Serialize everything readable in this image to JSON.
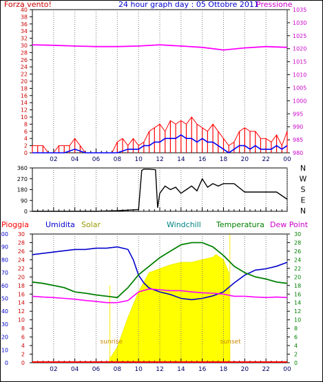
{
  "header": {
    "left_label": "Forza vento!",
    "title": "24 hour graph day : 05 Ottobre 2011",
    "right_label": "Pressione"
  },
  "colors": {
    "wind": "#ff0000",
    "gust_avg": "#0000ff",
    "pressure": "#ff00ff",
    "direction": "#000000",
    "rain": "#ff0000",
    "humidity": "#0000cc",
    "solar": "#ffff00",
    "windchill": "#0000aa",
    "temperature": "#008000",
    "dewpoint": "#ff00ff",
    "axis_left": "#cc0000",
    "axis_right_temp": "#008000"
  },
  "chart_data": [
    {
      "type": "line",
      "name": "wind-pressure",
      "x_ticks": [
        "02",
        "04",
        "06",
        "08",
        "10",
        "12",
        "14",
        "16",
        "18",
        "20",
        "22",
        "00"
      ],
      "y_left_ticks": [
        "0",
        "2",
        "4",
        "6",
        "8",
        "10",
        "12",
        "14",
        "16",
        "18",
        "20",
        "22",
        "24",
        "26",
        "28",
        "30",
        "32",
        "34",
        "36",
        "38",
        "40"
      ],
      "ylim_left": [
        0,
        40
      ],
      "y_right_ticks": [
        "980",
        "985",
        "990",
        "995",
        "1000",
        "1005",
        "1010",
        "1015",
        "1020",
        "1025",
        "1030",
        "1035"
      ],
      "ylim_right": [
        980,
        1035
      ],
      "series": [
        {
          "key": "pressure",
          "x": [
            0,
            2,
            4,
            6,
            8,
            10,
            12,
            14,
            16,
            18,
            20,
            22,
            24
          ],
          "values": [
            1021.5,
            1021.3,
            1021.0,
            1020.8,
            1020.8,
            1021.0,
            1021.5,
            1021.0,
            1020.5,
            1019.5,
            1020.3,
            1020.8,
            1020.5
          ]
        },
        {
          "key": "wind",
          "x": [
            0,
            0.5,
            1,
            1.5,
            2,
            2.5,
            3,
            3.5,
            4,
            4.5,
            5,
            5.5,
            6,
            6.5,
            7,
            7.5,
            8,
            8.5,
            9,
            9.5,
            10,
            10.5,
            11,
            11.5,
            12,
            12.5,
            13,
            13.5,
            14,
            14.5,
            15,
            15.5,
            16,
            16.5,
            17,
            17.5,
            18,
            18.5,
            19,
            19.5,
            20,
            20.5,
            21,
            21.5,
            22,
            22.5,
            23,
            23.5,
            24
          ],
          "values": [
            2,
            2,
            2,
            0,
            0,
            2,
            2,
            2,
            4,
            2,
            0,
            0,
            0,
            0,
            0,
            0,
            3,
            4,
            2,
            4,
            2,
            3,
            6,
            7,
            8,
            6,
            9,
            8,
            9,
            8,
            10,
            8,
            7,
            6,
            8,
            6,
            4,
            2,
            3,
            6,
            7,
            6,
            6,
            4,
            4,
            3,
            5,
            2,
            6
          ]
        },
        {
          "key": "gust_avg",
          "x": [
            0,
            1,
            2,
            3,
            4,
            5,
            6,
            7,
            8,
            9,
            10,
            10.5,
            11,
            11.5,
            12,
            12.5,
            13,
            13.5,
            14,
            14.5,
            15,
            15.5,
            16,
            16.5,
            17,
            17.5,
            18,
            18.5,
            19,
            19.5,
            20,
            20.5,
            21,
            21.5,
            22,
            22.5,
            23,
            23.5,
            24
          ],
          "values": [
            0,
            0,
            0,
            0,
            1,
            0,
            0,
            0,
            0,
            1,
            1,
            2,
            2,
            3,
            3,
            4,
            4,
            4,
            5,
            4,
            4,
            3,
            4,
            3,
            3,
            2,
            1,
            0,
            1,
            2,
            2,
            1,
            2,
            1,
            1,
            1,
            2,
            1,
            2
          ]
        }
      ]
    },
    {
      "type": "line",
      "name": "wind-direction",
      "x_ticks": [
        "02",
        "04",
        "06",
        "08",
        "10",
        "12",
        "14",
        "16",
        "18",
        "20",
        "22",
        "00"
      ],
      "y_ticks": [
        "0",
        "90",
        "180",
        "270",
        "360"
      ],
      "y_right_labels": [
        "N",
        "W",
        "S",
        "E",
        "N"
      ],
      "ylim": [
        0,
        360
      ],
      "series": [
        {
          "key": "direction",
          "x": [
            0,
            2,
            4,
            6,
            8,
            9,
            10,
            10.3,
            10.5,
            11,
            11.6,
            11.8,
            12,
            12.5,
            13,
            13.5,
            14,
            14.5,
            15,
            15.5,
            16,
            16.5,
            17,
            17.5,
            18,
            19,
            20,
            21,
            22,
            23,
            24
          ],
          "values": [
            0,
            0,
            0,
            0,
            5,
            10,
            15,
            340,
            350,
            350,
            345,
            30,
            150,
            210,
            180,
            200,
            150,
            180,
            210,
            170,
            270,
            200,
            230,
            210,
            230,
            230,
            160,
            160,
            160,
            160,
            100
          ]
        }
      ]
    },
    {
      "type": "line",
      "name": "temp-humidity-solar",
      "x_ticks": [
        "02",
        "04",
        "06",
        "08",
        "10",
        "12",
        "14",
        "16",
        "18",
        "20",
        "22",
        "00"
      ],
      "y_left_ticks": [
        "0",
        "10",
        "20",
        "30",
        "40",
        "50",
        "60",
        "70",
        "80",
        "90",
        "100"
      ],
      "ylim_left": [
        0,
        100
      ],
      "y_left2_ticks": [
        "0",
        "2",
        "4",
        "6",
        "8",
        "10",
        "12",
        "14",
        "16",
        "18",
        "20",
        "22",
        "24",
        "26",
        "28",
        "30"
      ],
      "ylim_left2": [
        0,
        30
      ],
      "y_right_ticks": [
        "0",
        "2",
        "4",
        "6",
        "8",
        "10",
        "12",
        "14",
        "16",
        "18",
        "20",
        "22",
        "24",
        "26",
        "28",
        "30"
      ],
      "ylim_right": [
        0,
        30
      ],
      "legend": [
        "Pioggia",
        "Umidita",
        "Solar",
        "Windchill",
        "Temperatura",
        "Dew Point"
      ],
      "annotations": [
        "sunrise",
        "sunset"
      ],
      "sunrise_hour": 7.3,
      "sunset_hour": 18.6,
      "series": [
        {
          "key": "humidity",
          "x": [
            0,
            1,
            2,
            3,
            4,
            5,
            6,
            7,
            8,
            9,
            9.5,
            10,
            10.5,
            11,
            12,
            13,
            14,
            15,
            16,
            17,
            18,
            19,
            20,
            21,
            22,
            23,
            24
          ],
          "values": [
            84,
            85,
            86,
            87,
            88,
            88,
            89,
            89,
            90,
            88,
            80,
            68,
            62,
            58,
            55,
            53,
            50,
            49,
            50,
            52,
            55,
            62,
            68,
            72,
            73,
            75,
            78
          ]
        },
        {
          "key": "temperature",
          "x": [
            0,
            1,
            2,
            3,
            4,
            5,
            6,
            7,
            8,
            9,
            10,
            11,
            12,
            13,
            14,
            15,
            16,
            17,
            18,
            19,
            20,
            21,
            22,
            23,
            24
          ],
          "values": [
            18.8,
            18.5,
            18,
            17.5,
            16.5,
            16.2,
            15.8,
            15.5,
            15.2,
            17.5,
            20.5,
            22.5,
            24.5,
            26,
            27.5,
            28,
            28,
            27,
            25,
            22.5,
            21,
            20,
            19.5,
            18.8,
            18.5
          ]
        },
        {
          "key": "dewpoint",
          "x": [
            0,
            1,
            2,
            3,
            4,
            5,
            6,
            7,
            8,
            9,
            10,
            11,
            12,
            13,
            14,
            15,
            16,
            17,
            18,
            19,
            20,
            21,
            22,
            23,
            24
          ],
          "values": [
            15.5,
            15.3,
            15.2,
            15,
            14.8,
            14.5,
            14.3,
            14,
            14,
            14.5,
            16.5,
            17.2,
            17,
            16.8,
            16.8,
            16.5,
            16.3,
            16.2,
            16,
            15.5,
            15.5,
            15.3,
            15.2,
            15.3,
            15.2
          ]
        },
        {
          "key": "solar",
          "x": [
            7.2,
            7.3,
            8,
            9,
            10,
            11,
            12,
            13,
            14,
            15,
            16,
            17,
            17.3,
            18,
            18.5,
            18.6
          ],
          "values": [
            0,
            3,
            12,
            35,
            55,
            70,
            73,
            76,
            78,
            78,
            80,
            82,
            84,
            80,
            70,
            0
          ]
        }
      ]
    }
  ],
  "panel3_labels": {
    "rain": "Pioggia",
    "humidity": "Umidita",
    "solar": "Solar",
    "windchill": "Windchill",
    "temperature": "Temperatura",
    "dewpoint": "Dew Point",
    "sunrise": "sunrise",
    "sunset": "sunset"
  }
}
